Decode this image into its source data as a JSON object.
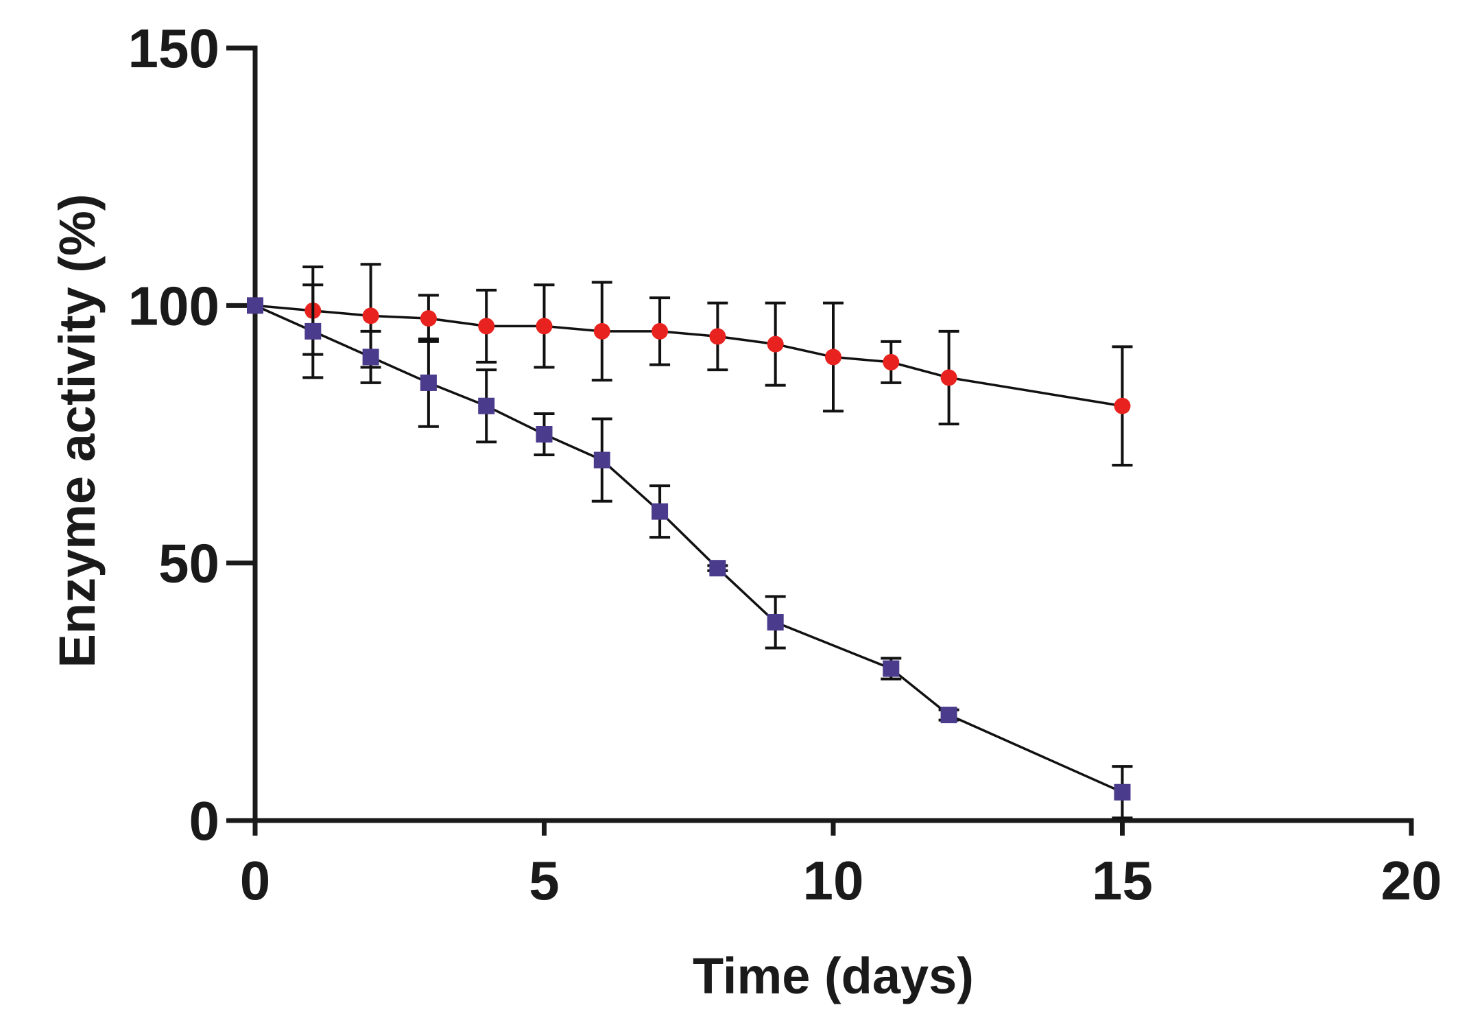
{
  "chart_data": {
    "type": "line",
    "title": "",
    "xlabel": "Time (days)",
    "ylabel": "Enzyme activity (%)",
    "xlim": [
      0,
      20
    ],
    "ylim": [
      0,
      150
    ],
    "xticks": [
      0,
      5,
      10,
      15,
      20
    ],
    "yticks": [
      0,
      50,
      100,
      150
    ],
    "xtick_labels": [
      "0",
      "5",
      "10",
      "15",
      "20"
    ],
    "ytick_labels": [
      "0",
      "50",
      "100",
      "150"
    ],
    "grid": false,
    "legend": "none",
    "series": [
      {
        "name": "red-circles",
        "marker": "circle",
        "color": "#e8231f",
        "x": [
          0,
          1,
          2,
          3,
          4,
          5,
          6,
          7,
          8,
          9,
          10,
          11,
          12,
          15
        ],
        "y": [
          100,
          99,
          98,
          97.5,
          96,
          96,
          95,
          95,
          94,
          92.5,
          90,
          89,
          86,
          80.5
        ],
        "err": [
          0,
          8.5,
          10,
          4.5,
          7,
          8,
          9.5,
          6.5,
          6.5,
          8,
          10.5,
          4,
          9,
          11.5
        ]
      },
      {
        "name": "purple-squares",
        "marker": "square",
        "color": "#4a3b8c",
        "x": [
          0,
          1,
          2,
          3,
          4,
          5,
          6,
          7,
          8,
          9,
          11,
          12,
          15
        ],
        "y": [
          100,
          95,
          90,
          85,
          80.5,
          75,
          70,
          60,
          49,
          38.5,
          29.5,
          20.5,
          5.5
        ],
        "err": [
          0,
          9,
          5,
          8.5,
          7,
          4,
          8,
          5,
          0.5,
          5,
          2,
          1,
          5
        ]
      }
    ]
  }
}
